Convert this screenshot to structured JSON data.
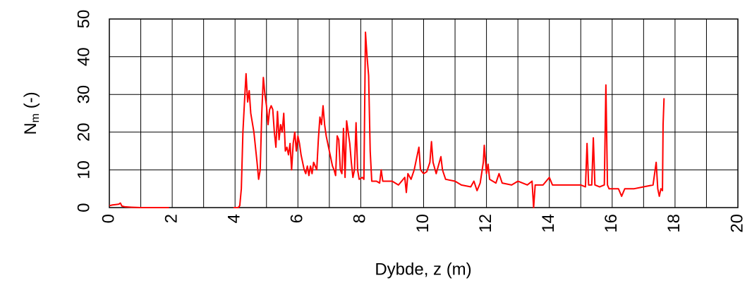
{
  "chart_data": {
    "type": "line",
    "xlabel": "Dybde, z (m)",
    "ylabel_parts": [
      "N",
      "m",
      " (-)"
    ],
    "xlim": [
      0,
      20
    ],
    "ylim": [
      0,
      50
    ],
    "xticks": [
      0,
      2,
      4,
      6,
      8,
      10,
      12,
      14,
      16,
      18,
      20
    ],
    "xminor": [
      1,
      3,
      5,
      7,
      9,
      11,
      13,
      15,
      17,
      19
    ],
    "yticks": [
      0,
      10,
      20,
      30,
      40,
      50
    ],
    "grid": true,
    "x": [
      0,
      0.1,
      0.2,
      0.3,
      0.35,
      0.4,
      0.5,
      0.7,
      1.0,
      1.3,
      1.9,
      null,
      3.95,
      4.1,
      4.15,
      4.2,
      4.25,
      4.3,
      4.35,
      4.4,
      4.45,
      4.5,
      4.6,
      4.7,
      4.75,
      4.8,
      4.85,
      4.9,
      4.95,
      5.0,
      5.05,
      5.1,
      5.15,
      5.2,
      5.25,
      5.3,
      5.35,
      5.4,
      5.45,
      5.5,
      5.55,
      5.6,
      5.65,
      5.7,
      5.75,
      5.8,
      5.85,
      5.9,
      5.95,
      6.0,
      6.05,
      6.1,
      6.2,
      6.25,
      6.3,
      6.35,
      6.4,
      6.45,
      6.5,
      6.6,
      6.65,
      6.7,
      6.75,
      6.8,
      6.85,
      6.9,
      7.0,
      7.1,
      7.15,
      7.2,
      7.25,
      7.3,
      7.35,
      7.4,
      7.45,
      7.5,
      7.55,
      7.6,
      7.65,
      7.7,
      7.75,
      7.8,
      7.85,
      7.9,
      7.95,
      8.05,
      8.1,
      8.15,
      8.2,
      8.25,
      8.3,
      8.35,
      8.5,
      8.6,
      8.65,
      8.7,
      9.0,
      9.2,
      9.4,
      9.45,
      9.5,
      9.6,
      9.7,
      9.8,
      9.85,
      9.9,
      10.0,
      10.1,
      10.2,
      10.25,
      10.3,
      10.4,
      10.5,
      10.55,
      10.6,
      10.7,
      11.0,
      11.2,
      11.5,
      11.6,
      11.7,
      11.8,
      11.9,
      11.93,
      12.0,
      12.05,
      12.1,
      12.3,
      12.4,
      12.5,
      12.8,
      13.0,
      13.3,
      13.45,
      13.5,
      13.55,
      13.8,
      14.0,
      14.1,
      14.5,
      15.0,
      15.15,
      15.2,
      15.25,
      15.35,
      15.4,
      15.45,
      15.6,
      15.75,
      15.8,
      15.85,
      15.9,
      16.2,
      16.3,
      16.4,
      16.7,
      17.0,
      17.3,
      17.4,
      17.45,
      17.5,
      17.55,
      17.6,
      17.62,
      17.65
    ],
    "series": [
      {
        "color": "#ff0000",
        "values": [
          0.5,
          0.7,
          0.8,
          0.9,
          1.2,
          0.4,
          0.2,
          0.1,
          0,
          0,
          0,
          null,
          0,
          0,
          0.5,
          5,
          20,
          28,
          35.5,
          28,
          31,
          25,
          20,
          12,
          7.5,
          10,
          25,
          34.5,
          30,
          27,
          22,
          26,
          27,
          26,
          20,
          16,
          25.5,
          18,
          22,
          20,
          25,
          15,
          16,
          14,
          17,
          10,
          17,
          20,
          15,
          19,
          17,
          14,
          10,
          9,
          11,
          8.5,
          11,
          9,
          12,
          10,
          18,
          24,
          22,
          27,
          22,
          19,
          15,
          11,
          10,
          8.5,
          19,
          18,
          10,
          9,
          21,
          8,
          23,
          20,
          17,
          12,
          8,
          10,
          22.5,
          10,
          7.5,
          8,
          7.5,
          46.5,
          40,
          35,
          15,
          7,
          7,
          6.5,
          10,
          7,
          7,
          6,
          8,
          4,
          9,
          7.5,
          10,
          14,
          16,
          10,
          9,
          9.5,
          12,
          17.5,
          12,
          9,
          12,
          13.5,
          10,
          7.5,
          7,
          6,
          5.5,
          7,
          4.5,
          6.5,
          12,
          16.5,
          9,
          11.5,
          7.5,
          6.5,
          9,
          6.5,
          6,
          7,
          6,
          7,
          0,
          6,
          6,
          8,
          6,
          6,
          6,
          5.5,
          17,
          6,
          6,
          18.5,
          6,
          5.5,
          6,
          32.5,
          6,
          5,
          5,
          3,
          5,
          5,
          5.5,
          6,
          12,
          5,
          3,
          5,
          4.5,
          22,
          29
        ]
      }
    ]
  }
}
